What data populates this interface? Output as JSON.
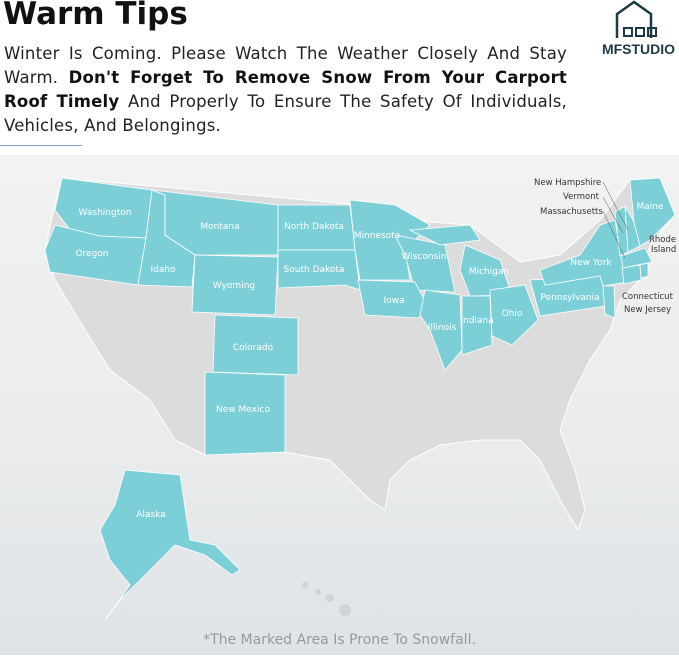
{
  "title": "Warm Tips",
  "intro": {
    "part1": "Winter Is Coming. Please Watch The Weather Closely And Stay Warm. ",
    "bold": "Don't Forget To Remove Snow From Your Carport Roof Timely",
    "part2": " And Properly To Ensure The Safety Of Individuals, Vehicles, And Belongings."
  },
  "logo": {
    "text": "MFSTUDIO",
    "icon": "house-logo-icon"
  },
  "colors": {
    "highlight": "#7ccfd6",
    "land": "#dcdcdc"
  },
  "map": {
    "states": [
      "Washington",
      "Oregon",
      "Idaho",
      "Montana",
      "Wyoming",
      "North Dakota",
      "South Dakota",
      "Minnesota",
      "Wisconsin",
      "Iowa",
      "Illinois",
      "Indiana",
      "Michigan",
      "Ohio",
      "Pennsylvania",
      "New York",
      "Colorado",
      "New Mexico",
      "Maine",
      "Alaska"
    ],
    "callouts": {
      "nh": "New Hampshire",
      "vt": "Vermont",
      "ma": "Massachusetts",
      "ri1": "Rhode",
      "ri2": "Island",
      "ct": "Connecticut",
      "nj": "New Jersey"
    }
  },
  "caption": "*The Marked Area Is Prone To Snowfall."
}
